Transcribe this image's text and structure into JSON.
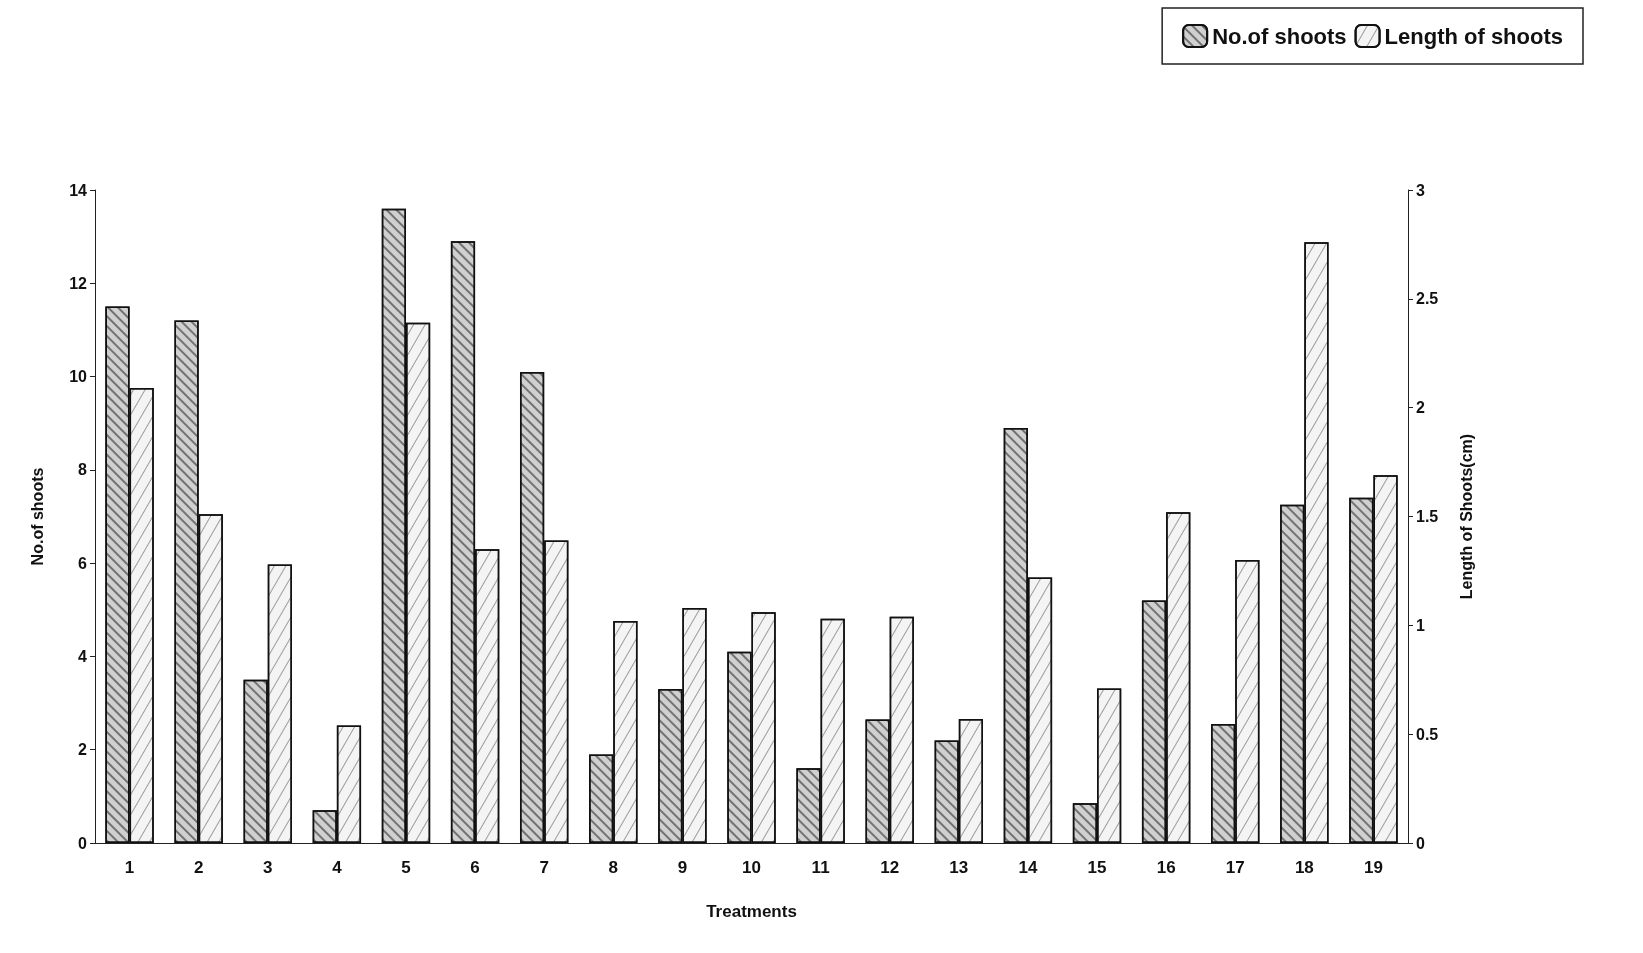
{
  "chart_data": {
    "type": "bar",
    "xlabel": "Treatments",
    "ylabel": "No.of shoots",
    "y2label": "Length of Shoots(cm)",
    "categories": [
      "1",
      "2",
      "3",
      "4",
      "5",
      "6",
      "7",
      "8",
      "9",
      "10",
      "11",
      "12",
      "13",
      "14",
      "15",
      "16",
      "17",
      "18",
      "19"
    ],
    "series": [
      {
        "name": "No.of shoots",
        "color": "#d0d0d0",
        "values": [
          11.5,
          11.2,
          3.5,
          0.7,
          13.6,
          12.9,
          10.1,
          1.9,
          3.3,
          4.1,
          1.6,
          2.65,
          2.2,
          8.9,
          0.85,
          5.2,
          2.55,
          7.25,
          7.4
        ]
      },
      {
        "name": "Length of shoots",
        "color": "#f4f4f4",
        "axis": "y2",
        "values": [
          2.09,
          1.51,
          1.28,
          0.54,
          2.39,
          1.35,
          1.39,
          1.02,
          1.08,
          1.06,
          1.03,
          1.04,
          0.57,
          1.22,
          0.71,
          1.52,
          1.3,
          2.76,
          1.69
        ]
      }
    ],
    "ylim": [
      0,
      14
    ],
    "yticks": [
      0,
      2,
      4,
      6,
      8,
      10,
      12,
      14
    ],
    "y2lim": [
      0,
      3
    ],
    "y2ticks": [
      0,
      0.5,
      1,
      1.5,
      2,
      2.5,
      3
    ],
    "grid": false,
    "legend": "top right"
  }
}
